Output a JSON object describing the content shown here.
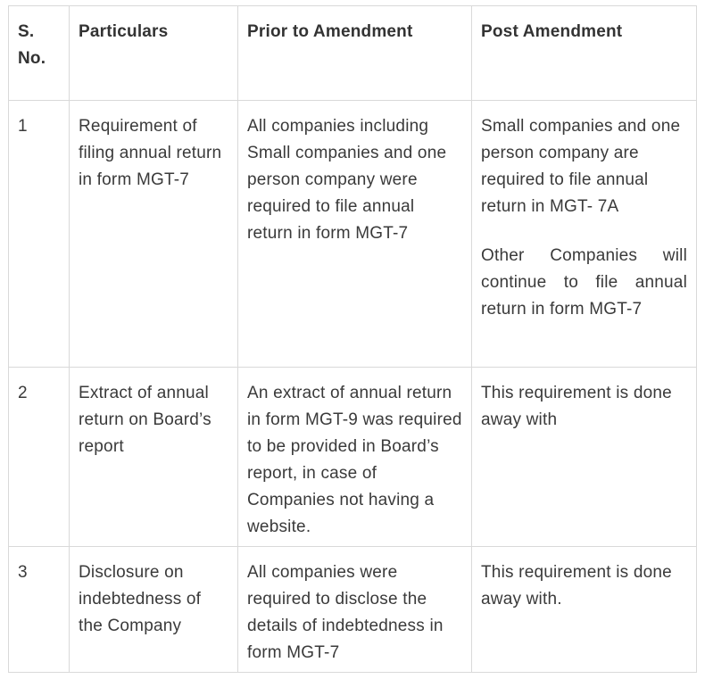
{
  "table": {
    "headers": [
      "S. No.",
      "Particulars",
      "Prior to Amendment",
      "Post Amendment"
    ],
    "rows": [
      {
        "sno": "1",
        "particulars": "Requirement of filing annual return in form MGT-7",
        "prior": "All companies including Small companies and one person company were required to file annual return in form MGT-7",
        "post": [
          "Small companies and one person company are required to file annual return in MGT- 7A",
          "Other Companies will continue to file annual return in form MGT-7"
        ]
      },
      {
        "sno": "2",
        "particulars": "Extract of annual return on Board’s report",
        "prior": "An extract of annual return in form MGT-9 was required to be provided in Board’s report, in case of Companies not having a website.",
        "post": [
          "This requirement is done away with"
        ]
      },
      {
        "sno": "3",
        "particulars": "Disclosure on indebtedness of the Company",
        "prior": "All companies were required to disclose the details of indebtedness in form MGT-7",
        "post": [
          "This requirement is done away with."
        ]
      }
    ]
  }
}
